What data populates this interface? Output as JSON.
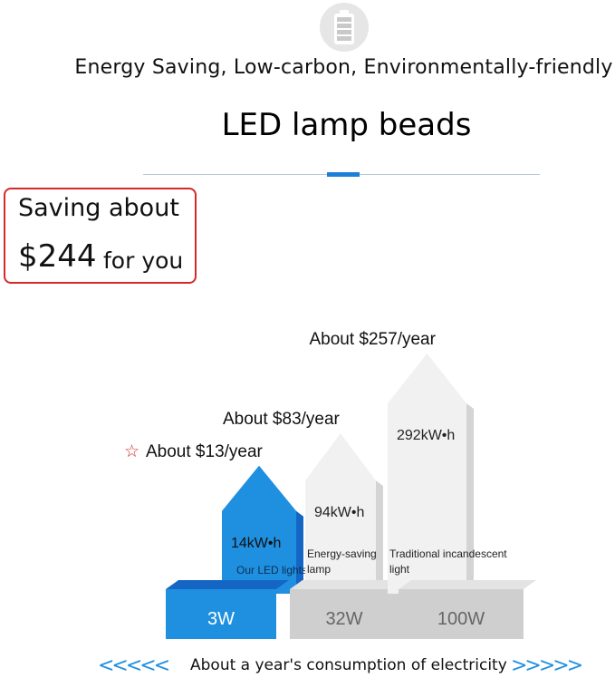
{
  "header": {
    "icon": "battery-icon",
    "tagline": "Energy Saving, Low-carbon, Environmentally-friendly",
    "headline": "LED lamp beads"
  },
  "savings": {
    "line1": "Saving about",
    "amount": "$244",
    "suffix": "for you"
  },
  "footer": {
    "left_arrows": "<<<<<",
    "caption": "About a year's consumption of electricity",
    "right_arrows": ">>>>>"
  },
  "colors": {
    "led": "#1f8fe0",
    "led_dark": "#1566c4",
    "gray_light": "#f1f1f1",
    "gray_mid": "#d4d4d4",
    "gray_base": "#cfcfcf",
    "accent_red": "#d42a2a"
  },
  "chart_data": {
    "type": "bar",
    "categories": [
      "Our LED lights",
      "Energy-saving lamp",
      "Traditional incandescent light"
    ],
    "wattage": [
      "3W",
      "32W",
      "100W"
    ],
    "energy_labels": [
      "14kW•h",
      "94kW•h",
      "292kW•h"
    ],
    "energy_kwh": [
      14,
      94,
      292
    ],
    "cost_labels": [
      "About $13/year",
      "About $83/year",
      "About $257/year"
    ],
    "cost_per_year": [
      13,
      83,
      257
    ],
    "star_marker": "☆",
    "highlight_index": 0
  }
}
